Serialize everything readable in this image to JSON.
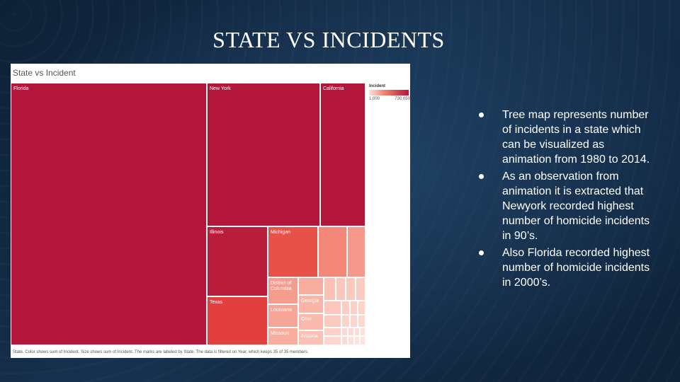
{
  "slide": {
    "title": "STATE VS INCIDENTS"
  },
  "viz": {
    "title": "State vs Incident",
    "legend": {
      "title": "Incident",
      "min": "1,000",
      "max": "730,050"
    },
    "footnote": "State.  Color shows sum of Incident.  Size shows sum of Incident.  The marks are labeled by State.  The data is filtered on Year, which keeps 35 of 35 members.",
    "labels": {
      "florida": "Florida",
      "new_york": "New York",
      "california": "California",
      "illinois": "Illinois",
      "michigan": "Michigan",
      "texas": "Texas",
      "dc": "District of Columbia",
      "louisiana": "Louisiana",
      "missouri": "Missouri",
      "georgia": "Georgia",
      "ohio": "Ohio",
      "arizona": "Arizona"
    },
    "colors": {
      "max": "#b2163a",
      "high": "#e8504a",
      "mid": "#f3877a",
      "low": "#f9b5a8",
      "lowest": "#fdd0c6"
    }
  },
  "bullets": [
    "Tree map represents number of incidents in a state which can be visualized as animation from 1980 to 2014.",
    "As an observation from animation it is extracted that Newyork recorded highest number of homicide incidents in 90’s.",
    "Also Florida recorded highest number of homicide incidents in 2000’s."
  ]
}
